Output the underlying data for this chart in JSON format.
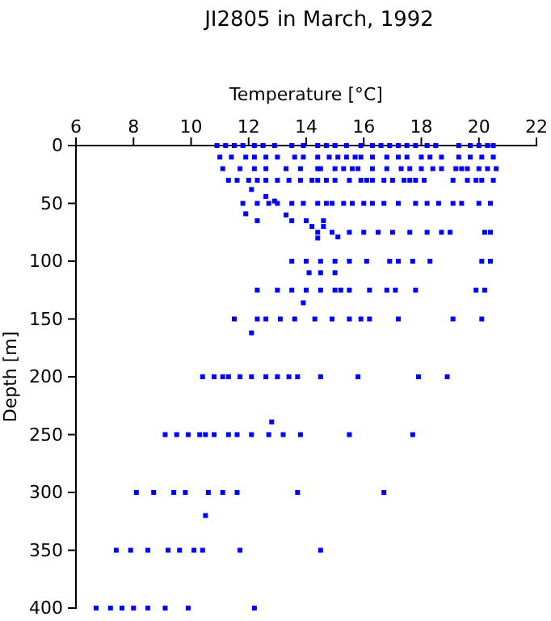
{
  "chart_data": {
    "type": "scatter",
    "title": "JI2805 in March, 1992",
    "xlabel": "Temperature [°C]",
    "ylabel": "Depth [m]",
    "xlim": [
      6,
      22
    ],
    "xticks": [
      6,
      8,
      10,
      12,
      14,
      16,
      18,
      20,
      22
    ],
    "ylim": [
      400,
      0
    ],
    "yticks": [
      0,
      50,
      100,
      150,
      200,
      250,
      300,
      350,
      400
    ],
    "marker": "square",
    "grid": false,
    "series": [
      {
        "color": "#0000ff",
        "x": [
          10.9,
          11.2,
          11.5,
          11.8,
          12.2,
          12.5,
          12.9,
          13.5,
          13.9,
          14.4,
          14.7,
          15.0,
          15.4,
          15.9,
          16.3,
          16.6,
          16.9,
          17.2,
          17.5,
          17.8,
          18.2,
          18.5,
          19.3,
          19.7,
          20.0,
          20.3,
          20.5
        ],
        "values": [
          0,
          0,
          0,
          0,
          0,
          0,
          0,
          0,
          0,
          0,
          0,
          0,
          0,
          0,
          0,
          0,
          0,
          0,
          0,
          0,
          0,
          0,
          0,
          0,
          0,
          0,
          0
        ]
      },
      {
        "color": "#0000ff",
        "x": [
          11.0,
          11.4,
          11.9,
          12.2,
          12.6,
          13.0,
          13.6,
          13.9,
          14.4,
          14.8,
          15.1,
          15.4,
          15.7,
          15.9,
          16.3,
          16.8,
          17.2,
          17.5,
          18.0,
          18.3,
          18.7,
          19.3,
          19.7,
          20.1,
          20.5
        ],
        "values": [
          10,
          10,
          10,
          10,
          10,
          10,
          10,
          10,
          10,
          10,
          10,
          10,
          10,
          10,
          10,
          10,
          10,
          10,
          10,
          10,
          10,
          10,
          10,
          10,
          10
        ]
      },
      {
        "color": "#0000ff",
        "x": [
          11.1,
          11.7,
          12.2,
          12.6,
          13.3,
          13.8,
          14.4,
          14.5,
          15.0,
          15.3,
          15.6,
          15.8,
          16.3,
          16.8,
          17.3,
          17.6,
          18.0,
          18.4,
          18.7,
          19.2,
          19.4,
          19.6,
          20.0,
          20.3,
          20.6
        ],
        "values": [
          20,
          20,
          20,
          20,
          20,
          20,
          20,
          20,
          20,
          20,
          20,
          20,
          20,
          20,
          20,
          20,
          20,
          20,
          20,
          20,
          20,
          20,
          20,
          20,
          20
        ]
      },
      {
        "color": "#0000ff",
        "x": [
          11.3,
          11.6,
          12.0,
          12.3,
          12.6,
          13.0,
          13.4,
          13.8,
          14.2,
          14.4,
          14.7,
          15.0,
          15.5,
          15.9,
          16.1,
          16.3,
          16.7,
          17.0,
          17.4,
          17.6,
          17.8,
          18.1,
          19.1,
          19.6,
          19.9,
          20.1,
          20.5
        ],
        "values": [
          30,
          30,
          30,
          30,
          30,
          30,
          30,
          30,
          30,
          30,
          30,
          30,
          30,
          30,
          30,
          30,
          30,
          30,
          30,
          30,
          30,
          30,
          30,
          30,
          30,
          30,
          30
        ]
      },
      {
        "color": "#0000ff",
        "x": [
          11.8,
          12.3,
          12.7,
          13.0,
          13.5,
          13.9,
          14.4,
          14.7,
          14.9,
          15.3,
          15.6,
          16.0,
          16.3,
          16.7,
          17.2,
          17.8,
          18.2,
          18.6,
          19.1,
          19.4,
          20.0,
          20.4
        ],
        "values": [
          50,
          50,
          50,
          50,
          50,
          50,
          50,
          50,
          50,
          50,
          50,
          50,
          50,
          50,
          50,
          50,
          50,
          50,
          50,
          50,
          50,
          50
        ]
      },
      {
        "color": "#0000ff",
        "x": [
          14.4,
          14.9,
          15.5,
          16.0,
          16.5,
          17.0,
          17.6,
          18.2,
          18.7,
          19.0,
          20.2,
          20.4
        ],
        "values": [
          75,
          75,
          75,
          75,
          75,
          75,
          75,
          75,
          75,
          75,
          75,
          75
        ]
      },
      {
        "color": "#0000ff",
        "x": [
          13.5,
          14.0,
          14.5,
          15.0,
          15.5,
          16.1,
          16.9,
          17.2,
          17.7,
          18.3,
          20.1,
          20.4
        ],
        "values": [
          100,
          100,
          100,
          100,
          100,
          100,
          100,
          100,
          100,
          100,
          100,
          100
        ]
      },
      {
        "color": "#0000ff",
        "x": [
          12.3,
          13.0,
          13.5,
          14.0,
          14.5,
          15.0,
          15.2,
          15.5,
          16.2,
          16.8,
          17.1,
          17.8,
          19.9,
          20.2
        ],
        "values": [
          125,
          125,
          125,
          125,
          125,
          125,
          125,
          125,
          125,
          125,
          125,
          125,
          125,
          125
        ]
      },
      {
        "color": "#0000ff",
        "x": [
          11.5,
          12.3,
          12.6,
          13.1,
          13.6,
          14.3,
          14.9,
          15.5,
          15.9,
          16.2,
          17.2,
          19.1,
          20.1
        ],
        "values": [
          150,
          150,
          150,
          150,
          150,
          150,
          150,
          150,
          150,
          150,
          150,
          150,
          150
        ]
      },
      {
        "color": "#0000ff",
        "x": [
          10.4,
          10.8,
          11.1,
          11.3,
          11.7,
          12.1,
          12.6,
          13.0,
          13.4,
          13.7,
          14.5,
          15.8,
          17.9,
          18.9
        ],
        "values": [
          200,
          200,
          200,
          200,
          200,
          200,
          200,
          200,
          200,
          200,
          200,
          200,
          200,
          200
        ]
      },
      {
        "color": "#0000ff",
        "x": [
          9.1,
          9.5,
          9.9,
          10.3,
          10.5,
          10.8,
          11.3,
          11.6,
          12.1,
          12.7,
          13.2,
          13.8,
          15.5,
          17.7
        ],
        "values": [
          250,
          250,
          250,
          250,
          250,
          250,
          250,
          250,
          250,
          250,
          250,
          250,
          250,
          250
        ]
      },
      {
        "color": "#0000ff",
        "x": [
          8.1,
          8.7,
          9.4,
          9.8,
          10.6,
          11.1,
          11.6,
          13.7,
          16.7
        ],
        "values": [
          300,
          300,
          300,
          300,
          300,
          300,
          300,
          300,
          300
        ]
      },
      {
        "color": "#0000ff",
        "x": [
          7.4,
          7.9,
          8.5,
          9.2,
          9.6,
          10.1,
          10.4,
          11.7,
          14.5
        ],
        "values": [
          350,
          350,
          350,
          350,
          350,
          350,
          350,
          350,
          350
        ]
      },
      {
        "color": "#0000ff",
        "x": [
          6.7,
          7.2,
          7.6,
          8.0,
          8.5,
          9.1,
          9.9,
          12.2
        ],
        "values": [
          400,
          400,
          400,
          400,
          400,
          400,
          400,
          400
        ]
      },
      {
        "color": "#0000ff",
        "x": [
          12.1,
          12.6,
          12.9,
          11.9,
          13.3,
          13.5,
          14.0,
          14.6,
          12.3,
          14.2,
          14.6,
          14.4,
          15.1,
          14.1,
          14.5,
          15.0,
          13.9,
          12.1,
          12.8,
          10.5
        ],
        "values": [
          38,
          44,
          48,
          59,
          60,
          65,
          65,
          65,
          65,
          70,
          70,
          80,
          79,
          110,
          110,
          110,
          136,
          162,
          239,
          320
        ]
      }
    ]
  }
}
